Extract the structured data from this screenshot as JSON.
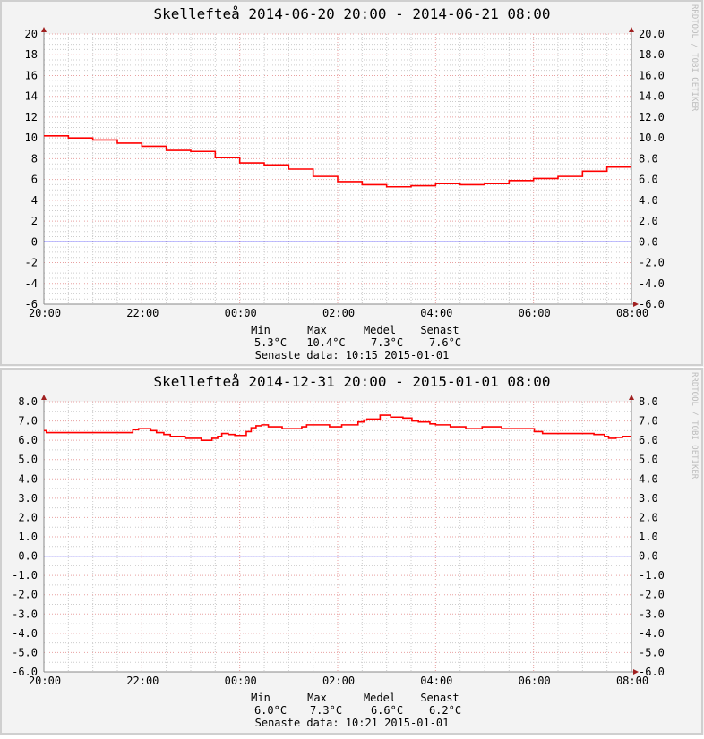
{
  "watermark": "RRDTOOL / TOBI OETIKER",
  "chart_data": [
    {
      "type": "line",
      "title": "Skellefteå 2014-06-20 20:00 - 2014-06-21 08:00",
      "x_tick_labels": [
        "20:00",
        "22:00",
        "00:00",
        "02:00",
        "04:00",
        "06:00",
        "08:00"
      ],
      "y_tick_labels_left": [
        "20",
        "18",
        "16",
        "14",
        "12",
        "10",
        "8",
        "6",
        "4",
        "2",
        "0",
        "-2",
        "-4",
        "-6"
      ],
      "y_tick_labels_right": [
        "20.0",
        "18.0",
        "16.0",
        "14.0",
        "12.0",
        "10.0",
        "8.0",
        "6.0",
        "4.0",
        "2.0",
        "0.0",
        "-2.0",
        "-4.0",
        "-6.0"
      ],
      "ylim": [
        -6,
        20
      ],
      "y_major": 2,
      "y_minor": 0.5,
      "x_range_minutes": 720,
      "step": true,
      "series": [
        {
          "name": "temperature",
          "color": "#ff0000",
          "points": [
            [
              0,
              10.2
            ],
            [
              30,
              10.0
            ],
            [
              60,
              9.8
            ],
            [
              90,
              9.5
            ],
            [
              120,
              9.2
            ],
            [
              150,
              8.8
            ],
            [
              180,
              8.7
            ],
            [
              210,
              8.1
            ],
            [
              240,
              7.6
            ],
            [
              270,
              7.4
            ],
            [
              300,
              7.0
            ],
            [
              330,
              6.3
            ],
            [
              360,
              5.8
            ],
            [
              390,
              5.5
            ],
            [
              420,
              5.3
            ],
            [
              450,
              5.4
            ],
            [
              480,
              5.6
            ],
            [
              510,
              5.5
            ],
            [
              540,
              5.6
            ],
            [
              570,
              5.9
            ],
            [
              600,
              6.1
            ],
            [
              630,
              6.3
            ],
            [
              660,
              6.8
            ],
            [
              690,
              7.2
            ]
          ]
        },
        {
          "name": "zero",
          "color": "#0000ff",
          "points": [
            [
              0,
              0
            ],
            [
              720,
              0
            ]
          ]
        }
      ],
      "legend": {
        "headers": [
          "Min",
          "Max",
          "Medel",
          "Senast"
        ],
        "values": [
          "5.3°C",
          "10.4°C",
          "7.3°C",
          "7.6°C"
        ],
        "footer": "Senaste data: 10:15 2015-01-01"
      }
    },
    {
      "type": "line",
      "title": "Skellefteå 2014-12-31 20:00 - 2015-01-01 08:00",
      "x_tick_labels": [
        "20:00",
        "22:00",
        "00:00",
        "02:00",
        "04:00",
        "06:00",
        "08:00"
      ],
      "y_tick_labels_left": [
        "8.0",
        "7.0",
        "6.0",
        "5.0",
        "4.0",
        "3.0",
        "2.0",
        "1.0",
        "0.0",
        "-1.0",
        "-2.0",
        "-3.0",
        "-4.0",
        "-5.0",
        "-6.0"
      ],
      "y_tick_labels_right": [
        "8.0",
        "7.0",
        "6.0",
        "5.0",
        "4.0",
        "3.0",
        "2.0",
        "1.0",
        "0.0",
        "-1.0",
        "-2.0",
        "-3.0",
        "-4.0",
        "-5.0",
        "-6.0"
      ],
      "ylim": [
        -6,
        8
      ],
      "y_major": 1,
      "y_minor": 0.5,
      "x_range_minutes": 720,
      "step": true,
      "series": [
        {
          "name": "temperature",
          "color": "#ff0000",
          "points": [
            [
              0,
              6.5
            ],
            [
              3,
              6.4
            ],
            [
              109,
              6.55
            ],
            [
              116,
              6.6
            ],
            [
              131,
              6.5
            ],
            [
              138,
              6.4
            ],
            [
              147,
              6.3
            ],
            [
              155,
              6.2
            ],
            [
              173,
              6.1
            ],
            [
              193,
              6.0
            ],
            [
              206,
              6.1
            ],
            [
              213,
              6.2
            ],
            [
              218,
              6.35
            ],
            [
              226,
              6.3
            ],
            [
              234,
              6.25
            ],
            [
              248,
              6.45
            ],
            [
              254,
              6.65
            ],
            [
              260,
              6.75
            ],
            [
              267,
              6.8
            ],
            [
              275,
              6.7
            ],
            [
              292,
              6.6
            ],
            [
              316,
              6.7
            ],
            [
              322,
              6.8
            ],
            [
              350,
              6.7
            ],
            [
              365,
              6.8
            ],
            [
              385,
              6.95
            ],
            [
              392,
              7.05
            ],
            [
              396,
              7.1
            ],
            [
              412,
              7.3
            ],
            [
              425,
              7.2
            ],
            [
              440,
              7.15
            ],
            [
              451,
              7.0
            ],
            [
              459,
              6.95
            ],
            [
              473,
              6.85
            ],
            [
              480,
              6.8
            ],
            [
              498,
              6.7
            ],
            [
              517,
              6.6
            ],
            [
              537,
              6.7
            ],
            [
              561,
              6.6
            ],
            [
              601,
              6.45
            ],
            [
              611,
              6.35
            ],
            [
              674,
              6.3
            ],
            [
              687,
              6.2
            ],
            [
              692,
              6.1
            ],
            [
              701,
              6.15
            ],
            [
              709,
              6.2
            ]
          ]
        },
        {
          "name": "zero",
          "color": "#0000ff",
          "points": [
            [
              0,
              0
            ],
            [
              720,
              0
            ]
          ]
        }
      ],
      "legend": {
        "headers": [
          "Min",
          "Max",
          "Medel",
          "Senast"
        ],
        "values": [
          "6.0°C",
          "7.3°C",
          "6.6°C",
          "6.2°C"
        ],
        "footer": "Senaste data: 10:21 2015-01-01"
      }
    }
  ]
}
